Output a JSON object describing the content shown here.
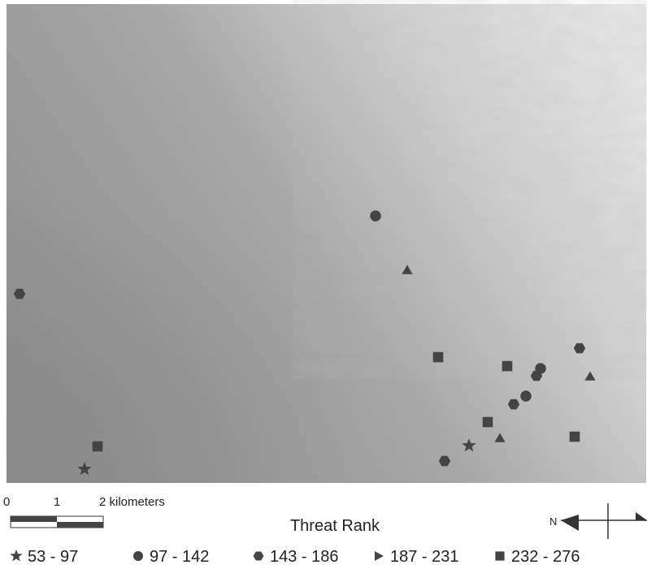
{
  "legend": {
    "title": "Threat Rank",
    "items": [
      "53 - 97",
      "97 - 142",
      "143 - 186",
      "187 - 231",
      "232 - 276"
    ]
  },
  "scale_bar": {
    "labels": [
      "0",
      "1",
      "2 kilometers"
    ]
  },
  "north_arrow": {
    "label": "N"
  }
}
